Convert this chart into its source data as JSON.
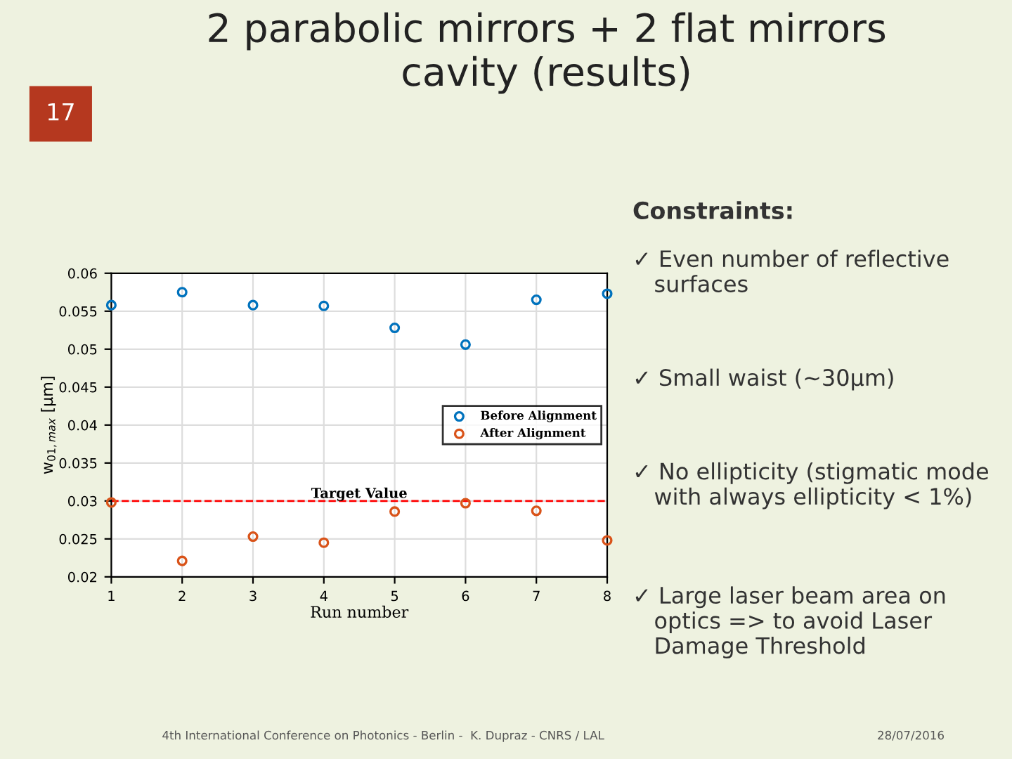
{
  "chart_data": {
    "type": "scatter",
    "title": "2 parabolic mirrors + 2 flat mirrors\ncavity (results)",
    "xlabel": "Run number",
    "ylabel": "w$_{01,max}$ [μm]",
    "x": [
      1,
      2,
      3,
      4,
      5,
      6,
      7,
      8
    ],
    "series": [
      {
        "name": "Before Alignment",
        "color": "#0072bd",
        "values": [
          0.0558,
          0.0575,
          0.0558,
          0.0557,
          0.0528,
          0.0506,
          0.0565,
          0.0573
        ]
      },
      {
        "name": "After Alignment",
        "color": "#d95319",
        "values": [
          0.0298,
          0.0221,
          0.0253,
          0.0245,
          0.0286,
          0.0297,
          0.0287,
          0.0248
        ]
      }
    ],
    "xlim": [
      1,
      8
    ],
    "xticks": [
      1,
      2,
      3,
      4,
      5,
      6,
      7,
      8
    ],
    "ylim": [
      0.02,
      0.06
    ],
    "yticks": [
      0.02,
      0.025,
      0.03,
      0.035,
      0.04,
      0.045,
      0.05,
      0.055,
      0.06
    ],
    "ref_lines": [
      {
        "axis": "y",
        "value": 0.03,
        "label": "Target Value",
        "color": "#ff0000",
        "line_style": "dashed"
      }
    ],
    "grid": true,
    "legend": "center right",
    "marker": "circle",
    "annotations": [
      "17",
      "Constraints:",
      "✓ Even number of reflective\n   surfaces",
      "✓ Small waist (~30μm)",
      "✓ No ellipticity (stigmatic mode\n   with always ellipticity < 1%)",
      "✓ Large laser beam area on\n   optics => to avoid Laser\n   Damage Threshold",
      "4th International Conference on Photonics - Berlin -  K. Dupraz - CNRS / LAL",
      "28/07/2016"
    ]
  }
}
